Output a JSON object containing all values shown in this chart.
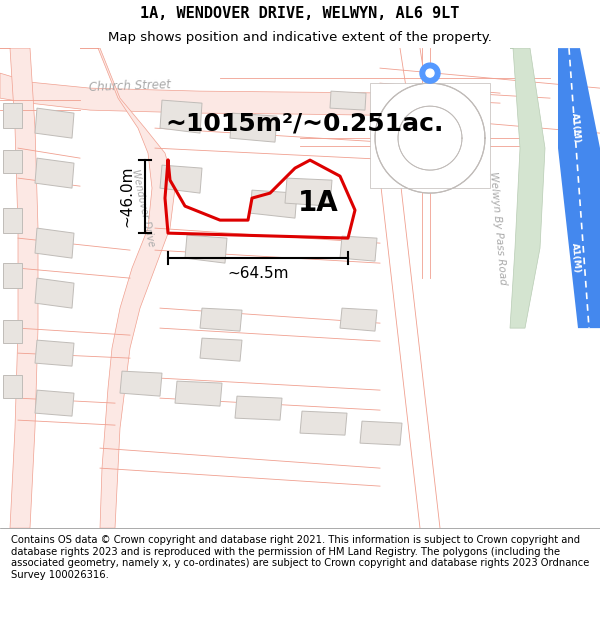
{
  "title": "1A, WENDOVER DRIVE, WELWYN, AL6 9LT",
  "subtitle": "Map shows position and indicative extent of the property.",
  "footer": "Contains OS data © Crown copyright and database right 2021. This information is subject to Crown copyright and database rights 2023 and is reproduced with the permission of HM Land Registry. The polygons (including the associated geometry, namely x, y co-ordinates) are subject to Crown copyright and database rights 2023 Ordnance Survey 100026316.",
  "area_label": "~1015m²/~0.251ac.",
  "width_label": "~64.5m",
  "height_label": "~46.0m",
  "property_label": "1A",
  "map_bg": "#ffffff",
  "road_fill": "#fce8e4",
  "road_line": "#f0a090",
  "building_fill": "#e8e4e0",
  "building_outline": "#c0bcb8",
  "plot_color": "#dd0000",
  "plot_linewidth": 2.2,
  "green_fill": "#d4e4d0",
  "green_outline": "#b8ccb4",
  "blue_road_fill": "#4488ee",
  "blue_road_outline": "#ffffff",
  "gray_line": "#c0bbb8",
  "road_label_color": "#aaaaaa",
  "title_fontsize": 11,
  "subtitle_fontsize": 9.5,
  "footer_fontsize": 7.2,
  "area_fontsize": 18,
  "dim_fontsize": 11,
  "label_fontsize": 20
}
